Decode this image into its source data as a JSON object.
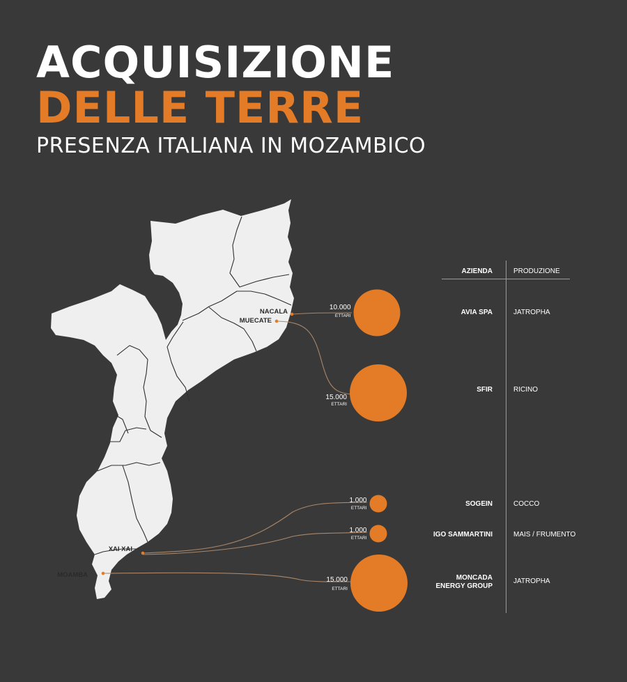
{
  "title": {
    "line1": "ACQUISIZIONE",
    "line2": "DELLE TERRE",
    "subtitle": "PRESENZA ITALIANA IN MOZAMBICO"
  },
  "colors": {
    "background": "#3a3939",
    "accent": "#e47b26",
    "land": "#efefef",
    "connector": "#a9876a"
  },
  "table": {
    "header_company": "AZIENDA",
    "header_product": "PRODUZIONE",
    "rows": [
      {
        "company": "AVIA SPA",
        "product": "JATROPHA"
      },
      {
        "company": "SFIR",
        "product": "RICINO"
      },
      {
        "company": "SOGEIN",
        "product": "COCCO"
      },
      {
        "company": "IGO SAMMARTINI",
        "product": "MAIS / FRUMENTO"
      },
      {
        "company": "MONCADA\nENERGY GROUP",
        "product": "JATROPHA"
      }
    ]
  },
  "locations": [
    {
      "name": "NACALA"
    },
    {
      "name": "MUECATE"
    },
    {
      "name": "XAI XAI"
    },
    {
      "name": "MOAMBA"
    }
  ],
  "holdings": [
    {
      "company": "AVIA SPA",
      "location": "NACALA",
      "hectares": 10000,
      "value_label": "10.000",
      "unit_label": "ETTARI"
    },
    {
      "company": "SFIR",
      "location": "MUECATE",
      "hectares": 15000,
      "value_label": "15.000",
      "unit_label": "ETTARI"
    },
    {
      "company": "SOGEIN",
      "location": "XAI XAI",
      "hectares": 1000,
      "value_label": "1.000",
      "unit_label": "ETTARI"
    },
    {
      "company": "IGO SAMMARTINI",
      "location": "XAI XAI",
      "hectares": 1000,
      "value_label": "1.000",
      "unit_label": "ETTARI"
    },
    {
      "company": "MONCADA ENERGY GROUP",
      "location": "MOAMBA",
      "hectares": 15000,
      "value_label": "15.000",
      "unit_label": "ETTARI"
    }
  ]
}
